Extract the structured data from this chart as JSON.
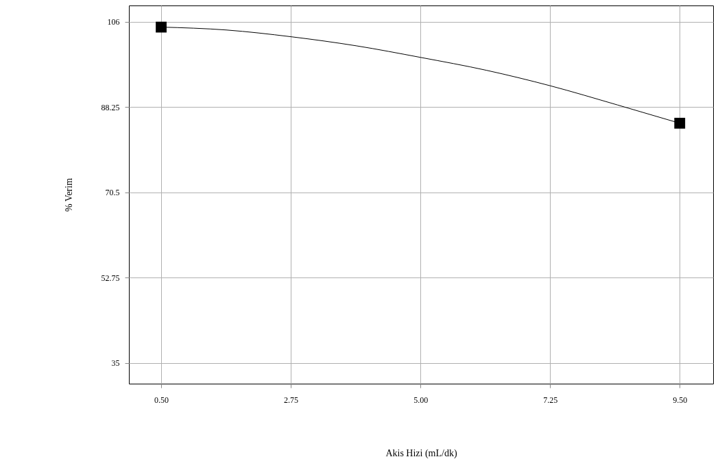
{
  "chart_data": {
    "type": "line",
    "xlabel": "Akis Hizi (mL/dk)",
    "ylabel": "% Verim",
    "xlim": [
      -0.06,
      10.08
    ],
    "ylim": [
      30.7,
      109.4
    ],
    "xticks": [
      {
        "value": 0.5,
        "label": "0.50"
      },
      {
        "value": 2.75,
        "label": "2.75"
      },
      {
        "value": 5,
        "label": "5.00"
      },
      {
        "value": 7.25,
        "label": "7.25"
      },
      {
        "value": 9.5,
        "label": "9.50"
      }
    ],
    "yticks": [
      35,
      52.75,
      70.5,
      88.25,
      106
    ],
    "grid": true,
    "series": [
      {
        "type": "line",
        "color": "#000000",
        "marker": "none",
        "line_style": "solid",
        "x": [
          0.5,
          1.63,
          2.75,
          3.89,
          5.0,
          6.15,
          7.25,
          8.42,
          9.5
        ],
        "values": [
          104.9,
          104.3,
          102.9,
          101.0,
          98.6,
          95.9,
          92.7,
          88.7,
          84.9
        ]
      },
      {
        "type": "scatter",
        "color": "#000000",
        "marker": "square",
        "x": [
          0.5,
          9.5
        ],
        "values": [
          104.9,
          84.9
        ]
      }
    ]
  }
}
